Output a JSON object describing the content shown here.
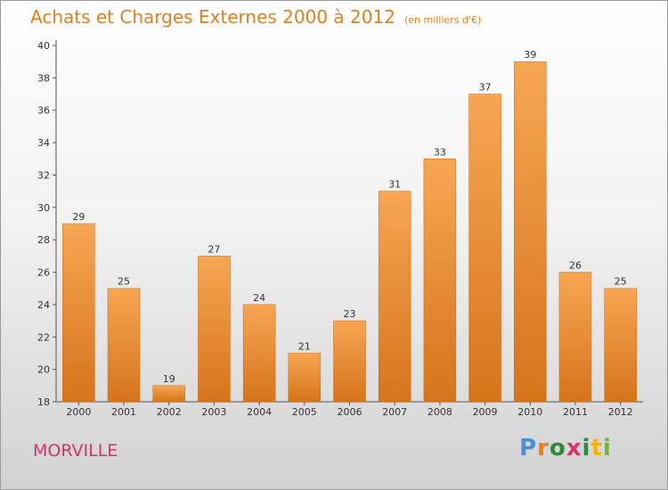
{
  "title": "Achats et Charges Externes 2000 à 2012",
  "subtitle": "(en milliers d'€)",
  "location": "MORVILLE",
  "brand": {
    "letters": [
      "P",
      "r",
      "o",
      "x",
      "i",
      "t",
      "i"
    ],
    "colors": [
      "#4a8fd6",
      "#ef7d1d",
      "#2c8a3c",
      "#d6336c",
      "#2c8a3c",
      "#f2b400",
      "#6fb53b"
    ]
  },
  "colors": {
    "bar_light": "#f7a653",
    "bar_dark": "#d6741b",
    "title": "#e07e1b",
    "location": "#d4336a"
  },
  "chart_data": {
    "type": "bar",
    "title": "Achats et Charges Externes 2000 à 2012",
    "subtitle": "(en milliers d'€)",
    "xlabel": "",
    "ylabel": "",
    "categories": [
      "2000",
      "2001",
      "2002",
      "2003",
      "2004",
      "2005",
      "2006",
      "2007",
      "2008",
      "2009",
      "2010",
      "2011",
      "2012"
    ],
    "values": [
      29,
      25,
      19,
      27,
      24,
      21,
      23,
      31,
      33,
      37,
      39,
      26,
      25
    ],
    "ylim": [
      18,
      40
    ],
    "yticks": [
      18,
      20,
      22,
      24,
      26,
      28,
      30,
      32,
      34,
      36,
      38,
      40
    ],
    "grid": false,
    "data_labels": true
  }
}
